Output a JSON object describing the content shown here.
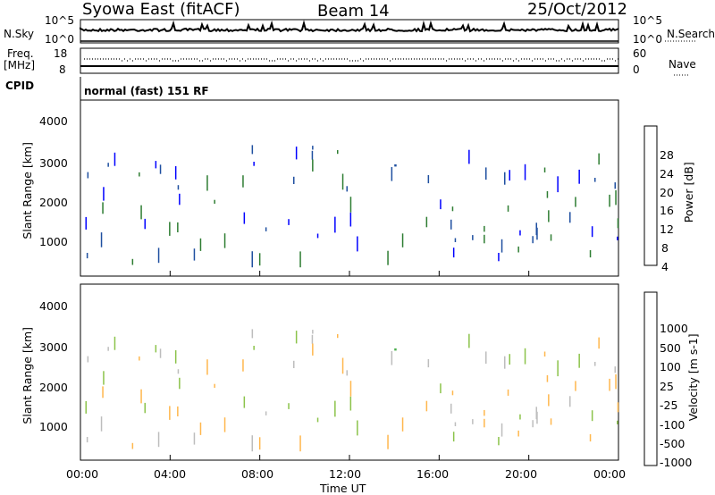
{
  "header": {
    "title": "Syowa East (fitACF)",
    "beam": "Beam 14",
    "date": "25/Oct/2012"
  },
  "top_panel": {
    "nsky_label": "N.Sky",
    "nsearch_label": "N.Search",
    "left_ticks": [
      "10^5",
      "10^0"
    ],
    "right_ticks": [
      "10^5",
      "10^0"
    ],
    "freq_label_1": "Freq.",
    "freq_label_2": "[MHz]",
    "freq_ticks": [
      "18",
      "8"
    ],
    "nave_label": "Nave",
    "nave_ticks": [
      "60",
      "0"
    ],
    "cpid_label": "CPID",
    "cpid_value": "normal (fast) 151 RF"
  },
  "colors": {
    "power_scale": [
      "#0000ff",
      "#1f4fa0",
      "#2e7d32",
      "#4caf50",
      "#8bc34a",
      "#ffc107",
      "#ff8c00",
      "#ff5722",
      "#ff0000"
    ],
    "velocity_scale": [
      "#1f3fbf",
      "#2e7d32",
      "#4caf50",
      "#8bc34a",
      "#bdbdbd",
      "#ffb74d",
      "#ff9800",
      "#ff5722",
      "#ff0000"
    ]
  },
  "chart_data": [
    {
      "type": "heatmap",
      "panel": "power",
      "ylabel": "Slant Range [km]",
      "yticks": [
        "4000",
        "3000",
        "2000",
        "1000"
      ],
      "ylim": [
        180,
        4500
      ],
      "colorbar_label": "Power [dB]",
      "colorbar_ticks": [
        "28",
        "24",
        "20",
        "16",
        "12",
        "8",
        "4"
      ]
    },
    {
      "type": "heatmap",
      "panel": "velocity",
      "ylabel": "Slant Range [km]",
      "yticks": [
        "4000",
        "3000",
        "2000",
        "1000"
      ],
      "ylim": [
        180,
        4500
      ],
      "colorbar_label": "Velocity [m s-1]",
      "colorbar_ticks": [
        "1000",
        "500",
        "100",
        "25",
        "-25",
        "-100",
        "-500",
        "-1000"
      ],
      "xlabel": "Time UT",
      "xticks": [
        "00:00",
        "04:00",
        "08:00",
        "12:00",
        "16:00",
        "20:00",
        "00:00"
      ],
      "xlim_hours": [
        0,
        24
      ]
    }
  ]
}
